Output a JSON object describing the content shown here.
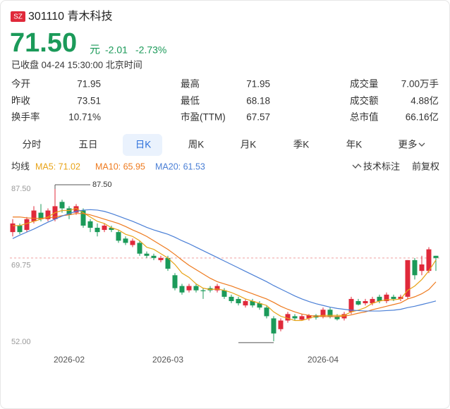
{
  "header": {
    "badge": "SZ",
    "title": "301110 青木科技",
    "price": "71.50",
    "unit": "元",
    "change": "-2.01",
    "change_pct": "-2.73%",
    "status": "已收盘 04-24 15:30:00 北京时间"
  },
  "stats": [
    [
      "今开",
      "71.95",
      "最高",
      "71.95",
      "成交量",
      "7.00万手"
    ],
    [
      "昨收",
      "73.51",
      "最低",
      "68.18",
      "成交额",
      "4.88亿"
    ],
    [
      "换手率",
      "10.71%",
      "市盈(TTM)",
      "67.57",
      "总市值",
      "66.16亿"
    ]
  ],
  "tabs": [
    "分时",
    "五日",
    "日K",
    "周K",
    "月K",
    "季K",
    "年K",
    "更多"
  ],
  "selected_tab": 2,
  "legend_title": "均线",
  "tools": [
    "技术标注",
    "前复权"
  ],
  "chart_data": {
    "type": "candlestick",
    "up_color": "#e0293a",
    "down_color": "#1b9a59",
    "categories": [
      null,
      null,
      null,
      null,
      null,
      null,
      null,
      null,
      "2026-02",
      null,
      null,
      null,
      null,
      null,
      null,
      null,
      null,
      null,
      null,
      null,
      null,
      null,
      "2026-03",
      null,
      null,
      null,
      null,
      null,
      null,
      null,
      null,
      null,
      null,
      null,
      null,
      null,
      null,
      null,
      null,
      null,
      null,
      null,
      null,
      null,
      "2026-04",
      null,
      null,
      null,
      null,
      null,
      null,
      null,
      null,
      null,
      null,
      null,
      null,
      null,
      null,
      null,
      null
    ],
    "open": [
      77.5,
      79,
      78,
      80,
      82,
      80.5,
      80.5,
      84.5,
      83,
      82,
      82.5,
      80,
      78.5,
      78,
      78.5,
      77.5,
      76,
      74.5,
      75,
      72.5,
      72,
      71,
      71.5,
      67.5,
      65,
      64,
      65,
      64,
      64.5,
      64,
      64,
      62.5,
      62,
      60.5,
      61.5,
      61,
      60,
      57.5,
      55,
      57,
      58,
      57.2,
      57.5,
      58.2,
      58,
      59.5,
      58,
      57.5,
      59,
      61.5,
      61,
      61,
      62.5,
      61.5,
      62.5,
      62,
      62.5,
      71,
      68.5,
      68.5,
      72
    ],
    "high": [
      80.5,
      79.5,
      81,
      83.5,
      84,
      83,
      87.5,
      85,
      83.5,
      84,
      83,
      80.5,
      79.5,
      79.5,
      79,
      78,
      76.5,
      76,
      75.5,
      73,
      72.5,
      72,
      72,
      68,
      65.5,
      65.5,
      65.5,
      64.5,
      65,
      65.5,
      64.5,
      63,
      62.5,
      62,
      62,
      61.5,
      60.5,
      58,
      57.5,
      59,
      58.5,
      58.5,
      58.5,
      58.5,
      60,
      60,
      58.5,
      59,
      62.5,
      62,
      62,
      62.5,
      63,
      63.5,
      63,
      63,
      71,
      71.5,
      72,
      74,
      72
    ],
    "low": [
      76.5,
      77,
      77.5,
      79.5,
      80,
      80,
      80,
      82,
      80.5,
      81.5,
      78.5,
      77.5,
      76.5,
      77.5,
      77.5,
      75,
      74.5,
      74,
      72,
      71.5,
      71,
      70.5,
      68.5,
      64,
      63,
      63.5,
      63.5,
      62,
      63.5,
      63.5,
      62,
      61,
      60.5,
      60,
      60,
      59.5,
      57.5,
      52.2,
      54.5,
      56.5,
      57,
      57,
      57,
      57.2,
      57.5,
      57.5,
      57,
      57,
      58.5,
      60.5,
      60.5,
      60.5,
      61,
      61,
      61.5,
      61.5,
      62,
      66.5,
      67.5,
      68,
      68.5
    ],
    "close": [
      79.5,
      77.5,
      80.5,
      82.5,
      80.5,
      82.5,
      83.5,
      83,
      81.5,
      83.5,
      79,
      78.5,
      77.5,
      79,
      78,
      75.5,
      75,
      75.5,
      72.5,
      72,
      71.5,
      71.5,
      69,
      64.5,
      63.5,
      65,
      64,
      63.8,
      64,
      65,
      62.5,
      61.5,
      61,
      61.5,
      60.5,
      60,
      58,
      54,
      57,
      58.5,
      57.5,
      58,
      58.2,
      57.7,
      59.5,
      58,
      57.3,
      58.5,
      62,
      60.7,
      61.5,
      62,
      61.5,
      63,
      62,
      62.5,
      71,
      67.5,
      70,
      73.5,
      71.5
    ],
    "series": [
      {
        "name": "MA5: 71.02",
        "color": "#e8a317",
        "values": [
          79,
          79,
          79.5,
          80,
          80.5,
          81,
          82,
          82.5,
          82.5,
          83,
          82,
          81,
          80,
          79.5,
          78.5,
          78,
          77,
          76.5,
          75.5,
          74,
          73.5,
          72.5,
          71.5,
          70,
          68,
          67,
          65.5,
          64.5,
          64.2,
          64.3,
          64,
          63.5,
          62.8,
          62,
          61.5,
          61,
          60.5,
          59,
          58,
          57.5,
          57,
          57,
          57.5,
          58,
          58.2,
          58.2,
          58.2,
          58.2,
          59,
          59.4,
          60,
          61,
          61.5,
          61.8,
          61.8,
          62,
          64,
          65,
          66.5,
          68.5,
          71.02
        ]
      },
      {
        "name": "MA10: 65.95",
        "color": "#ee7a1e",
        "values": [
          81,
          81,
          80.8,
          80.7,
          80.7,
          80.8,
          81,
          81.3,
          81.5,
          81.8,
          81.8,
          81.5,
          81,
          80.5,
          80,
          79.5,
          78.8,
          78,
          77.3,
          76.5,
          75.5,
          74.5,
          73.5,
          72.3,
          71,
          69.8,
          68.8,
          67.8,
          66.8,
          66,
          65.5,
          65,
          64.4,
          63.8,
          63.2,
          62.6,
          62,
          61.2,
          60.3,
          59.6,
          59,
          58.5,
          58.2,
          58,
          57.9,
          57.9,
          57.9,
          58,
          58.3,
          58.7,
          59,
          59.5,
          59.9,
          60.3,
          60.7,
          61.1,
          62,
          62.5,
          63.2,
          64.2,
          65.95
        ]
      },
      {
        "name": "MA20: 61.53",
        "color": "#4a7fd6",
        "values": [
          76,
          76.8,
          77.5,
          78.2,
          79,
          79.8,
          80.5,
          81.2,
          81.8,
          82.3,
          82.6,
          82.7,
          82.6,
          82.3,
          81.8,
          81.2,
          80.6,
          80,
          79.3,
          78.6,
          78,
          77.5,
          77,
          76.3,
          75.5,
          74.8,
          74,
          73.2,
          72.4,
          71.6,
          70.8,
          70,
          69.2,
          68.4,
          67.6,
          66.8,
          66,
          65.1,
          64.3,
          63.5,
          62.7,
          62,
          61.4,
          60.9,
          60.5,
          60.1,
          59.8,
          59.6,
          59.4,
          59.3,
          59.2,
          59.2,
          59.2,
          59.3,
          59.4,
          59.6,
          60,
          60.3,
          60.7,
          61.1,
          61.53
        ]
      }
    ],
    "ylim": [
      51.2,
      88.8
    ],
    "yticks": [
      {
        "value": 87.5,
        "label": "87.50"
      },
      69.75,
      {
        "value": 52,
        "label": "52.00"
      }
    ],
    "max_label": "87.50"
  }
}
